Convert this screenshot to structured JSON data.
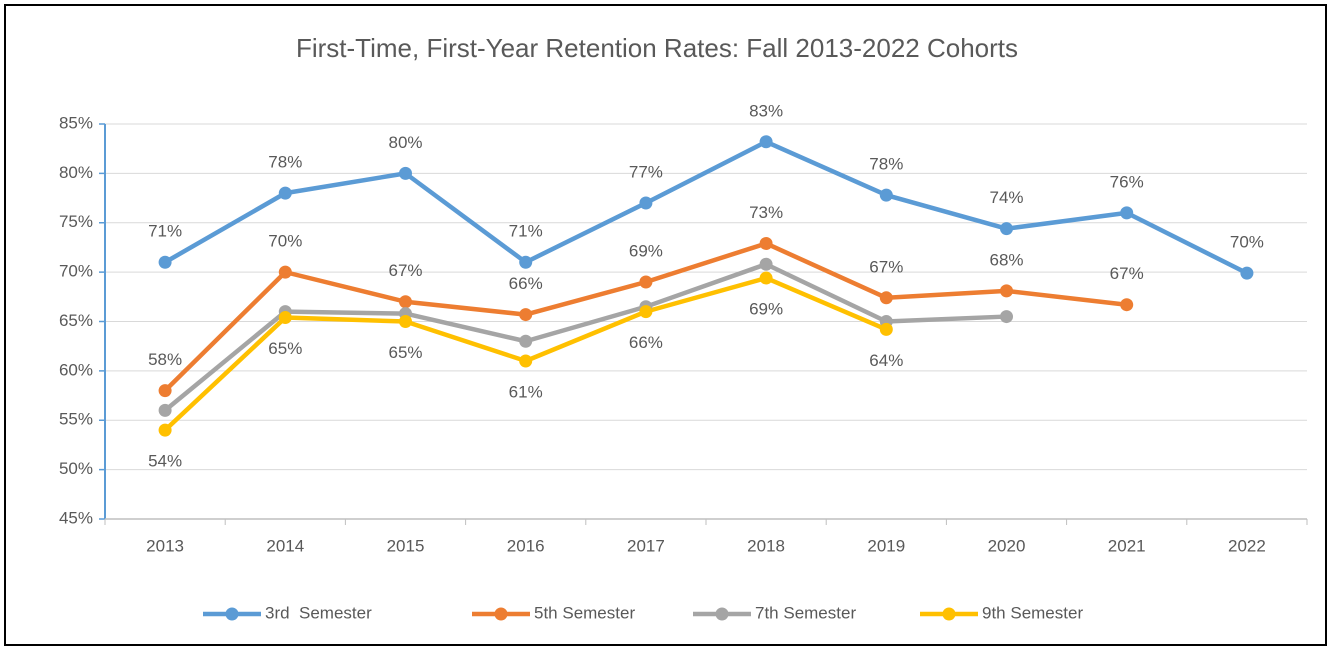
{
  "chart_data": {
    "type": "line",
    "title": "First-Time, First-Year Retention Rates: Fall 2013-2022 Cohorts",
    "categories": [
      "2013",
      "2014",
      "2015",
      "2016",
      "2017",
      "2018",
      "2019",
      "2020",
      "2021",
      "2022"
    ],
    "series": [
      {
        "name": "3rd  Semester",
        "color": "#5b9bd5",
        "values": [
          71,
          78,
          80,
          71,
          77,
          83.2,
          77.8,
          74.4,
          76,
          69.9
        ],
        "value_labels": [
          "71%",
          "78%",
          "80%",
          "71%",
          "77%",
          "83%",
          "78%",
          "74%",
          "76%",
          "70%"
        ]
      },
      {
        "name": "5th Semester",
        "color": "#ed7d31",
        "values": [
          58,
          70,
          67,
          65.7,
          69,
          72.9,
          67.4,
          68.1,
          66.7,
          null
        ],
        "value_labels": [
          "58%",
          "70%",
          "67%",
          "66%",
          "69%",
          "73%",
          "67%",
          "68%",
          "67%",
          null
        ]
      },
      {
        "name": "7th Semester",
        "color": "#a5a5a5",
        "values": [
          56,
          66,
          65.8,
          63,
          66.5,
          70.8,
          65,
          65.5,
          null,
          null
        ]
      },
      {
        "name": "9th Semester",
        "color": "#ffc000",
        "values": [
          54,
          65.4,
          65,
          61,
          66,
          69.4,
          64.2,
          null,
          null,
          null
        ],
        "value_labels": [
          "54%",
          "65%",
          "65%",
          "61%",
          "66%",
          "69%",
          "64%",
          null,
          null,
          null
        ]
      }
    ],
    "ylim": [
      45,
      85
    ],
    "yticks": [
      {
        "value": 45,
        "label": "45%"
      },
      {
        "value": 50,
        "label": "50%"
      },
      {
        "value": 55,
        "label": "55%"
      },
      {
        "value": 60,
        "label": "60%"
      },
      {
        "value": 65,
        "label": "65%"
      },
      {
        "value": 70,
        "label": "70%"
      },
      {
        "value": 75,
        "label": "75%"
      },
      {
        "value": 80,
        "label": "80%"
      },
      {
        "value": 85,
        "label": "85%"
      }
    ],
    "grid": true,
    "legend": "bottom"
  }
}
